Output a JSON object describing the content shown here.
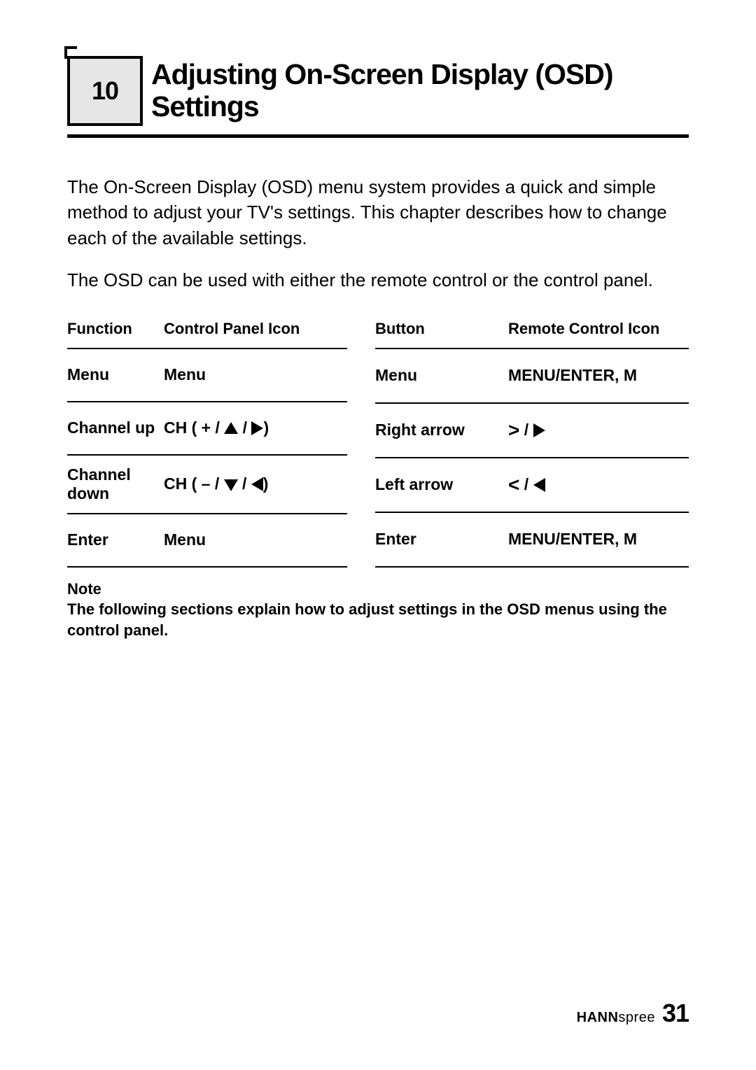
{
  "chapter": {
    "number": "10",
    "title": "Adjusting On-Screen Display (OSD) Settings"
  },
  "paragraphs": {
    "intro": "The On-Screen Display (OSD) menu system provides a quick and simple method to adjust your TV's settings. This chapter describes how to change each of the available settings.",
    "usage": "The OSD can be used with either the remote control or the control panel."
  },
  "table_left": {
    "headers": {
      "c1": "Function",
      "c2": "Control Panel Icon"
    },
    "rows": [
      {
        "func": "Menu",
        "icon_prefix": "Menu",
        "shape1": "",
        "shape2": ""
      },
      {
        "func": "Channel up",
        "icon_prefix": "CH ( + / ",
        "shape1": "up",
        "mid": " / ",
        "shape2": "right",
        "suffix": ")"
      },
      {
        "func": "Channel down",
        "icon_prefix": "CH ( – / ",
        "shape1": "down",
        "mid": " / ",
        "shape2": "left",
        "suffix": ")"
      },
      {
        "func": "Enter",
        "icon_prefix": "Menu",
        "shape1": "",
        "shape2": ""
      }
    ]
  },
  "table_right": {
    "headers": {
      "c1": "Button",
      "c2": "Remote Control Icon"
    },
    "rows": [
      {
        "btn": "Menu",
        "icon_prefix": "MENU/ENTER, M",
        "sym": "",
        "shape": ""
      },
      {
        "btn": "Right arrow",
        "icon_prefix": "",
        "sym": ">",
        "mid": " / ",
        "shape": "right"
      },
      {
        "btn": "Left arrow",
        "icon_prefix": "",
        "sym": "<",
        "mid": " / ",
        "shape": "left"
      },
      {
        "btn": "Enter",
        "icon_prefix": "MENU/ENTER, M",
        "sym": "",
        "shape": ""
      }
    ]
  },
  "note": {
    "label": "Note",
    "text": "The following sections explain how to adjust settings in the OSD menus using the control panel."
  },
  "footer": {
    "brand_bold": "HANN",
    "brand_light": "spree",
    "page": "31"
  },
  "colors": {
    "text": "#000000",
    "box_bg": "#e6e6e6",
    "page_bg": "#ffffff"
  }
}
